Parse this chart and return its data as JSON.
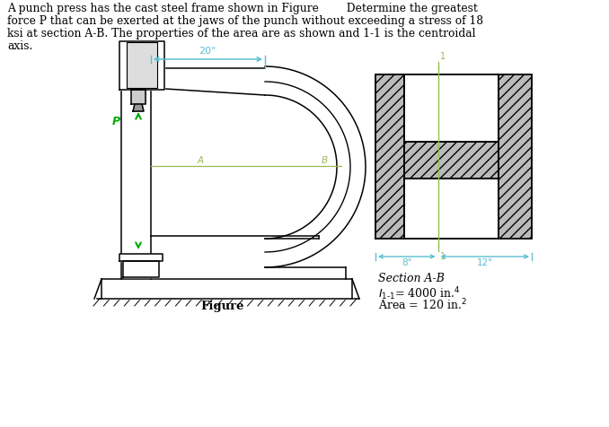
{
  "title_line1": "A punch press has the cast steel frame shown in Figure        Determine the greatest",
  "title_line2": "force P that can be exerted at the jaws of the punch without exceeding a stress of 18",
  "title_line3": "ksi at section A-B. The properties of the area are as shown and 1-1 is the centroidal",
  "title_line4": "axis.",
  "figure_label": "Figure",
  "section_label": "Section A-B",
  "dim_20": "20\"",
  "dim_8": "8\"",
  "dim_12": "12\"",
  "label_A": "A",
  "label_B": "B",
  "label_P": "P",
  "bg_color": "#ffffff",
  "frame_color": "#000000",
  "dim_color": "#5bbfcf",
  "green_color": "#00aa00",
  "section_line_color": "#99bb55",
  "hatch_color": "#aaaaaa"
}
